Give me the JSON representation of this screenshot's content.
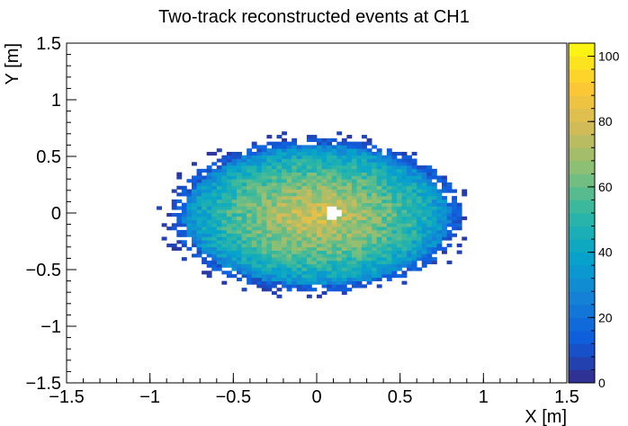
{
  "chart_data": {
    "type": "heatmap",
    "title": "Two-track reconstructed events at CH1",
    "xlabel": "X [m]",
    "ylabel": "Y [m]",
    "xlim": [
      -1.5,
      1.5
    ],
    "ylim": [
      -1.5,
      1.5
    ],
    "x_ticks": [
      "−1.5",
      "−1",
      "−0.5",
      "0",
      "0.5",
      "1",
      "1.5"
    ],
    "y_ticks": [
      "−1.5",
      "−1",
      "−0.5",
      "0",
      "0.5",
      "1",
      "1.5"
    ],
    "colorbar": {
      "range": [
        0,
        104
      ],
      "ticks": [
        "0",
        "20",
        "40",
        "60",
        "80",
        "100"
      ],
      "colors": [
        "#352a87",
        "#0f5cdd",
        "#1481d6",
        "#06a4ca",
        "#2eb7a4",
        "#87bf77",
        "#d1bb59",
        "#fec832",
        "#f9fb0e"
      ]
    },
    "distribution": {
      "shape": "ellipse",
      "center": [
        0,
        -0.02
      ],
      "semi_axis_x": 0.8,
      "semi_axis_y": 0.62,
      "peak_value": 80,
      "edge_value": 20,
      "hole": {
        "center": [
          0.1,
          0.0
        ],
        "radius": 0.055
      }
    }
  }
}
